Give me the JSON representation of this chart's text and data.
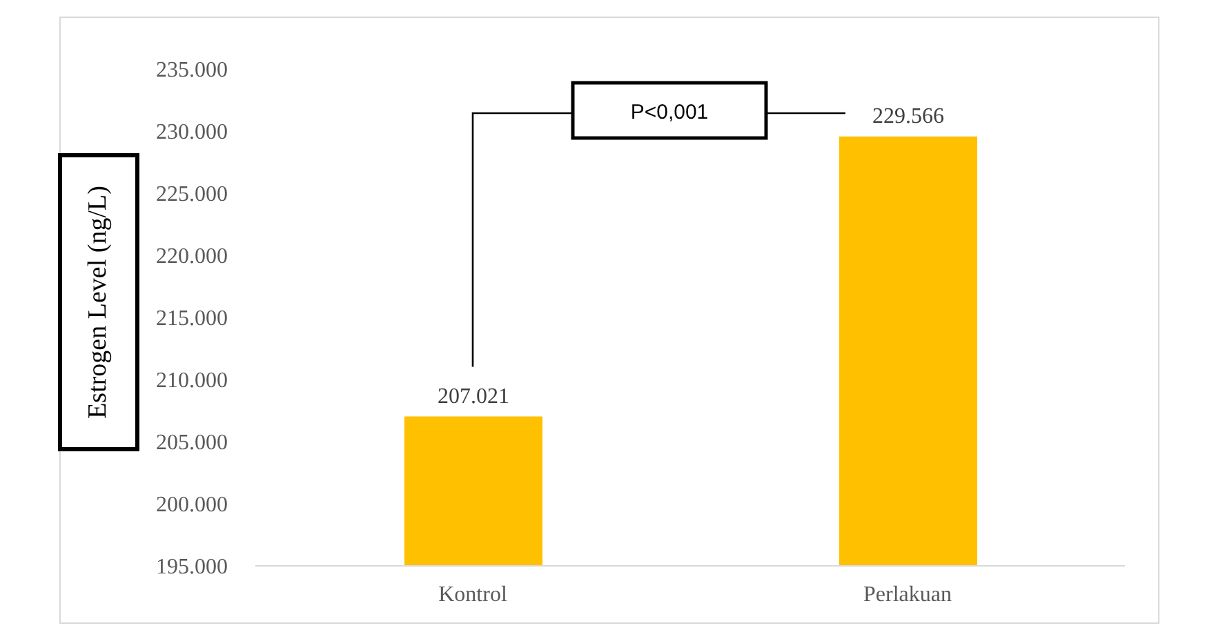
{
  "chart_data": {
    "type": "bar",
    "ylabel": "Estrogen Level (ng/L)",
    "categories": [
      "Kontrol",
      "Perlakuan"
    ],
    "values": [
      207.021,
      229.566
    ],
    "value_labels": [
      "207.021",
      "229.566"
    ],
    "color": "#ffc000",
    "ylim": [
      195,
      235
    ],
    "yticks": [
      {
        "value": 195,
        "label": "195.000"
      },
      {
        "value": 200,
        "label": "200.000"
      },
      {
        "value": 205,
        "label": "205.000"
      },
      {
        "value": 210,
        "label": "210.000"
      },
      {
        "value": 215,
        "label": "215.000"
      },
      {
        "value": 220,
        "label": "220.000"
      },
      {
        "value": 225,
        "label": "225.000"
      },
      {
        "value": 230,
        "label": "230.000"
      },
      {
        "value": 235,
        "label": "235.000"
      }
    ],
    "grid": false,
    "legend": false,
    "annotations": [
      "P<0,001"
    ]
  }
}
